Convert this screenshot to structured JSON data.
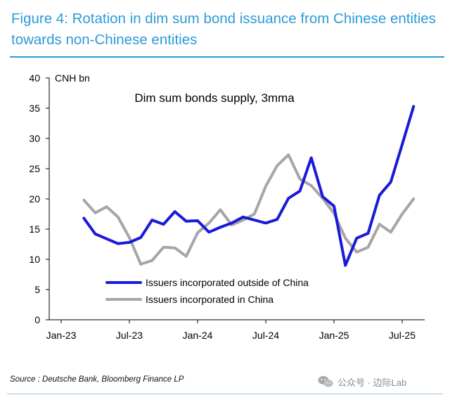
{
  "figure": {
    "title": "Figure 4: Rotation in dim sum bond issuance from Chinese entities towards non-Chinese entities",
    "accent_color": "#2b9bd8"
  },
  "chart_data": {
    "type": "line",
    "title": "Dim sum bonds supply, 3mma",
    "unit_label": "CNH bn",
    "xlabel": "",
    "ylabel": "",
    "ylim": [
      0,
      40
    ],
    "y_ticks": [
      0,
      5,
      10,
      15,
      20,
      25,
      30,
      35,
      40
    ],
    "x_ticks": [
      "Jan-23",
      "Jul-23",
      "Jan-24",
      "Jul-24",
      "Jan-25",
      "Jul-25"
    ],
    "x": [
      "2023-03",
      "2023-04",
      "2023-05",
      "2023-06",
      "2023-07",
      "2023-08",
      "2023-09",
      "2023-10",
      "2023-11",
      "2023-12",
      "2024-01",
      "2024-02",
      "2024-03",
      "2024-04",
      "2024-05",
      "2024-06",
      "2024-07",
      "2024-08",
      "2024-09",
      "2024-10",
      "2024-11",
      "2024-12",
      "2025-01",
      "2025-02",
      "2025-03",
      "2025-04",
      "2025-05",
      "2025-06",
      "2025-07",
      "2025-08"
    ],
    "grid": false,
    "legend_position": "bottom-center",
    "series": [
      {
        "name": "Issuers incorporated outside of China",
        "color": "#1a1ad8",
        "values": [
          16.8,
          14.2,
          13.4,
          12.6,
          12.8,
          13.6,
          16.5,
          15.8,
          17.9,
          16.3,
          16.4,
          14.5,
          15.3,
          16.0,
          17.0,
          16.5,
          16.0,
          16.6,
          20.1,
          21.3,
          26.8,
          20.4,
          18.8,
          9.0,
          13.5,
          14.3,
          20.6,
          22.8,
          29.0,
          35.3
        ]
      },
      {
        "name": "Issuers incorporated in China",
        "color": "#a6a6a6",
        "values": [
          19.8,
          17.7,
          18.7,
          17.0,
          13.6,
          9.2,
          9.8,
          12.0,
          11.9,
          10.5,
          14.4,
          16.0,
          18.2,
          15.7,
          16.5,
          17.5,
          22.1,
          25.5,
          27.3,
          23.3,
          22.2,
          20.1,
          17.6,
          13.5,
          11.2,
          12.0,
          15.8,
          14.5,
          17.5,
          20.0
        ]
      }
    ]
  },
  "footer": {
    "source": "Source : Deutsche Bank, Bloomberg Finance LP",
    "watermark": "公众号 · 边际Lab"
  }
}
